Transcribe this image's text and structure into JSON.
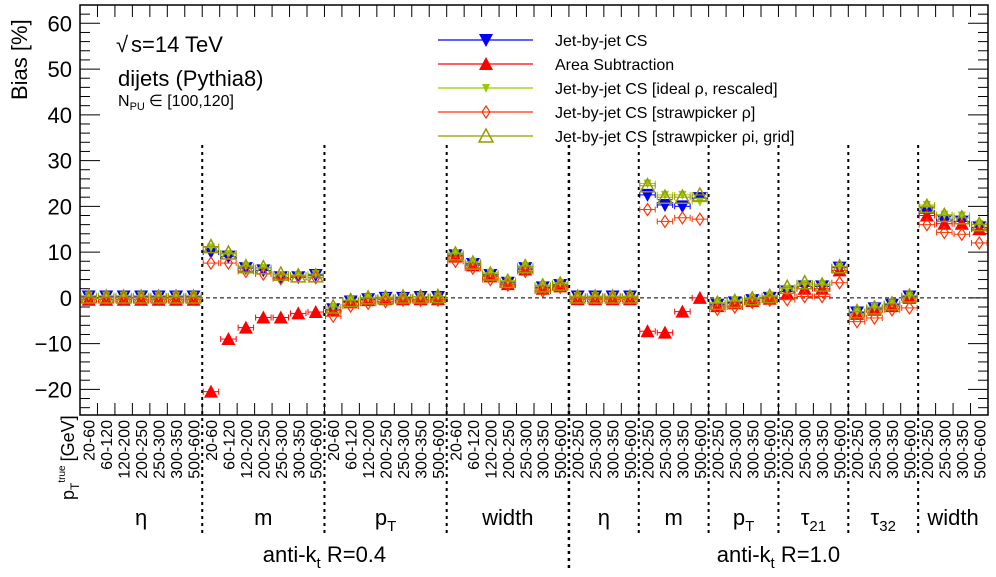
{
  "chart_data": {
    "type": "scatter",
    "ylabel": "Bias [%]",
    "xlabel_main": "p",
    "xlabel_sub": "T",
    "xlabel_sup": "true",
    "xlabel_unit": "[GeV]",
    "ylim": [
      -25.6,
      64
    ],
    "yticks": [
      60,
      50,
      40,
      30,
      20,
      10,
      0,
      -10,
      -20
    ],
    "annotations": {
      "energy": "s=14 TeV",
      "process": "dijets (Pythia8)",
      "pileup_main": "N",
      "pileup_sub": "PU",
      "pileup_range": "∈ [100,120]"
    },
    "jet_collections": [
      {
        "label_main": "anti-k",
        "label_sub": "t",
        "label_rest": " R=0.4",
        "groups": 4
      },
      {
        "label_main": "anti-k",
        "label_sub": "t",
        "label_rest": " R=1.0",
        "groups": 6
      }
    ],
    "groups": [
      {
        "label": "η",
        "sub": "",
        "bins": [
          "20-60",
          "60-120",
          "120-200",
          "200-250",
          "250-300",
          "300-350",
          "500-600"
        ]
      },
      {
        "label": "m",
        "sub": "",
        "bins": [
          "20-60",
          "60-120",
          "120-200",
          "200-250",
          "250-300",
          "300-350",
          "500-600"
        ]
      },
      {
        "label": "p",
        "sub": "T",
        "bins": [
          "20-60",
          "60-120",
          "120-200",
          "200-250",
          "250-300",
          "300-350",
          "500-600"
        ]
      },
      {
        "label": "width",
        "sub": "",
        "bins": [
          "20-60",
          "60-120",
          "120-200",
          "200-250",
          "250-300",
          "300-350",
          "500-600"
        ]
      },
      {
        "label": "η",
        "sub": "",
        "bins": [
          "200-250",
          "250-300",
          "300-350",
          "500-600"
        ]
      },
      {
        "label": "m",
        "sub": "",
        "bins": [
          "200-250",
          "250-300",
          "300-350",
          "500-600"
        ]
      },
      {
        "label": "p",
        "sub": "T",
        "bins": [
          "200-250",
          "250-300",
          "300-350",
          "500-600"
        ]
      },
      {
        "label": "τ",
        "sub": "21",
        "bins": [
          "200-250",
          "250-300",
          "300-350",
          "500-600"
        ]
      },
      {
        "label": "τ",
        "sub": "32",
        "bins": [
          "200-250",
          "250-300",
          "300-350",
          "500-600"
        ]
      },
      {
        "label": "width",
        "sub": "",
        "bins": [
          "200-250",
          "250-300",
          "300-350",
          "500-600"
        ]
      }
    ],
    "series": [
      {
        "name": "Jet-by-jet CS",
        "color": "#0000ff",
        "marker": "full-down-triangle",
        "values": [
          0.3,
          0.3,
          0.3,
          0.3,
          0.3,
          0.3,
          0.3,
          10,
          9,
          6.5,
          6,
          4.5,
          4.5,
          5,
          -2.5,
          -0.8,
          -0.3,
          0,
          0,
          0.2,
          0.2,
          9.3,
          7.4,
          5,
          3.3,
          6.5,
          2.3,
          2.8,
          0.3,
          0.3,
          0.3,
          0.3,
          22.5,
          20.3,
          20,
          21.8,
          -1.5,
          -1,
          -0.5,
          0,
          1.4,
          2.5,
          2.5,
          6.6,
          -3.2,
          -2.3,
          -1.5,
          0.3,
          18.5,
          16.7,
          16.7,
          15.4
        ]
      },
      {
        "name": "Area Subtraction",
        "color": "#ff0000",
        "marker": "full-up-triangle",
        "values": [
          -0.4,
          -0.4,
          -0.4,
          -0.4,
          -0.4,
          -0.4,
          -0.4,
          -20.5,
          -9,
          -6.5,
          -4.3,
          -4.3,
          -3.4,
          -3.1,
          -2.8,
          -1,
          -0.5,
          -0.3,
          -0.3,
          -0.3,
          -0.3,
          9,
          7.1,
          4.7,
          3,
          6.2,
          2,
          2.5,
          -0.3,
          -0.3,
          -0.3,
          -0.3,
          -7.3,
          -7.6,
          -3,
          0,
          -1.8,
          -1.2,
          -0.7,
          -0.2,
          1,
          2,
          2,
          6,
          -3.5,
          -2.6,
          -1.8,
          0,
          18,
          16.2,
          16.2,
          15
        ]
      },
      {
        "name": "Jet-by-jet CS [ideal   ρ, rescaled]",
        "color": "#99cc00",
        "marker": "small-down-triangle",
        "values": [
          0.5,
          0.5,
          0.5,
          0.5,
          0.5,
          0.5,
          0.5,
          11,
          9.6,
          7,
          6.5,
          5,
          5,
          5.2,
          -2,
          -0.5,
          0,
          0.2,
          0.2,
          0.3,
          0.3,
          9.8,
          7.9,
          5.5,
          3.8,
          7,
          2.8,
          3.3,
          0.4,
          0.4,
          0.4,
          0.4,
          25,
          22.5,
          22.5,
          21,
          -1,
          -0.5,
          0,
          0.5,
          2,
          3,
          3,
          6.8,
          -3,
          -2,
          -1.2,
          0.5,
          20.3,
          18.2,
          18,
          16.1
        ]
      },
      {
        "name": "Jet-by-jet CS [strawpicker    ρ]",
        "color": "#ff3300",
        "marker": "open-diamond",
        "values": [
          0,
          0,
          0,
          0,
          0,
          0,
          0,
          7.6,
          7.6,
          5.8,
          5.2,
          4.2,
          4.7,
          4.4,
          -4,
          -1.8,
          -1.2,
          -0.8,
          -0.5,
          -0.5,
          -0.5,
          8,
          6.5,
          4,
          2.8,
          5.8,
          1.5,
          2.3,
          0,
          0,
          0,
          0,
          19.3,
          16.7,
          17.5,
          17.2,
          -2.5,
          -2,
          -1,
          -0.5,
          -0.4,
          0.3,
          0.3,
          3.3,
          -5.2,
          -4.4,
          -2.6,
          -2.2,
          16,
          14.3,
          13.9,
          12
        ]
      },
      {
        "name": "Jet-by-jet CS [strawpicker    ρi, grid]",
        "color": "#999900",
        "marker": "open-up-triangle",
        "values": [
          0.2,
          0.2,
          0.2,
          0.2,
          0.2,
          0.2,
          0.2,
          11.2,
          9.8,
          6.8,
          6.6,
          5.2,
          4.8,
          4.8,
          -2,
          -0.6,
          0,
          0,
          0.2,
          0.2,
          0.3,
          9.6,
          7.6,
          5.2,
          3.6,
          6.8,
          2.6,
          3,
          0.2,
          0.2,
          0.2,
          0.2,
          24.5,
          22,
          22,
          22.5,
          -1.2,
          -0.8,
          -0.2,
          0.3,
          2.3,
          3.3,
          2.8,
          6.8,
          -3,
          -2.2,
          -1.3,
          0.4,
          20,
          18,
          17.5,
          16
        ]
      }
    ],
    "legend_position": "top-center",
    "grid": false
  }
}
